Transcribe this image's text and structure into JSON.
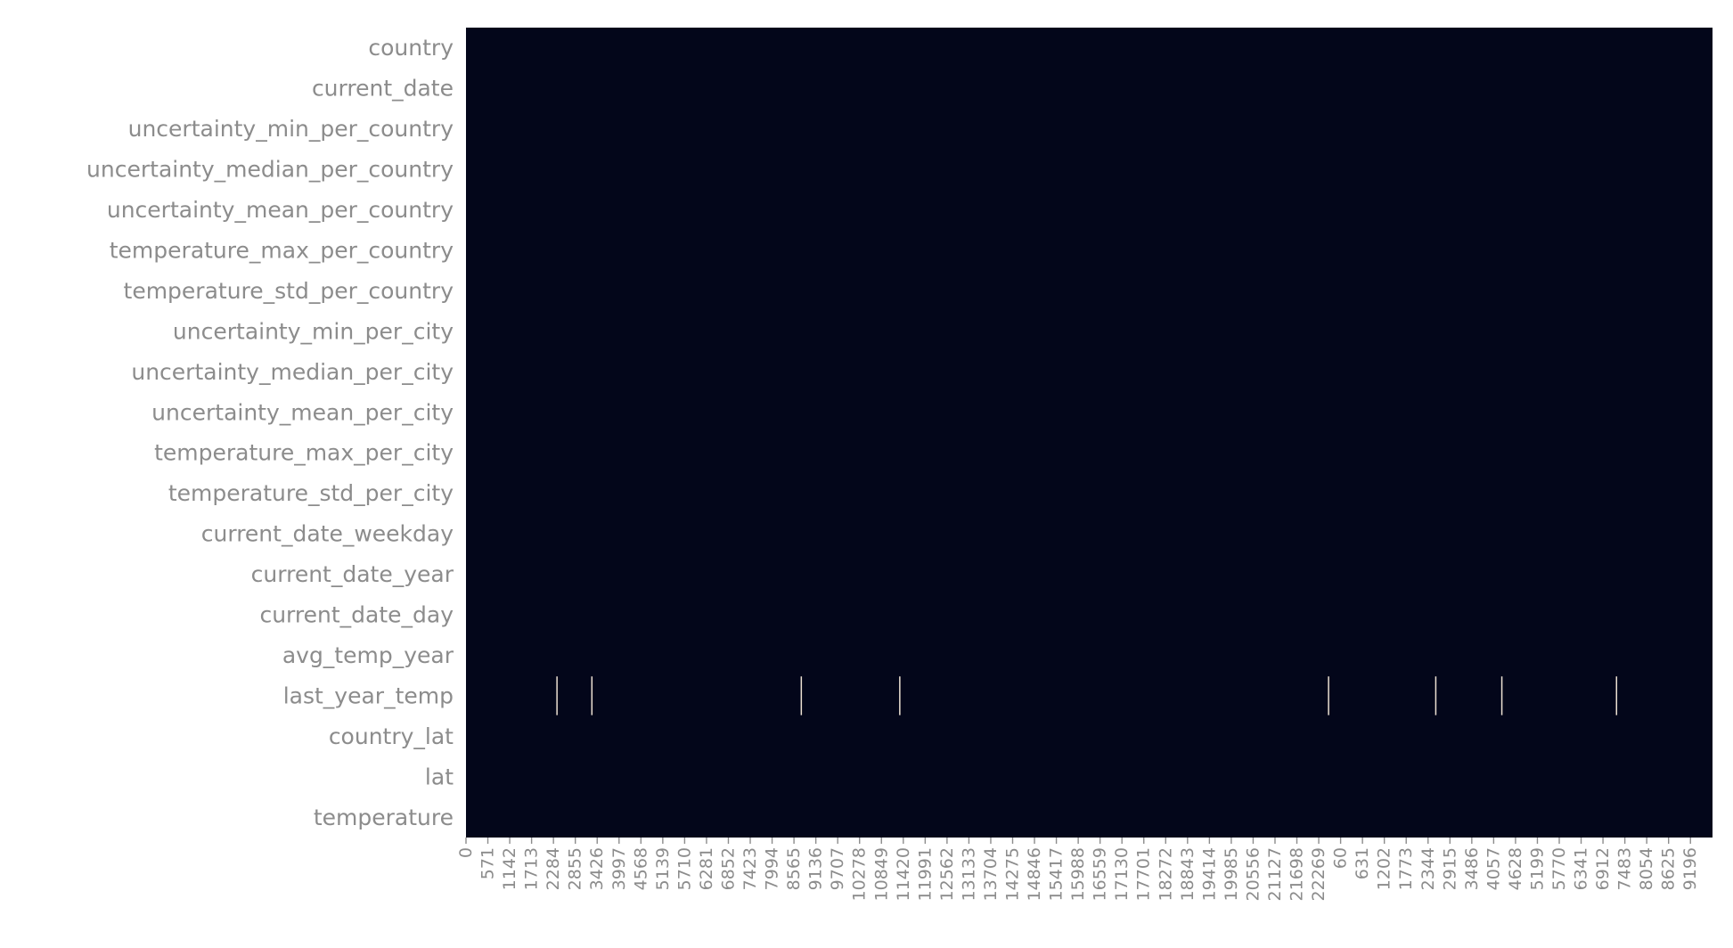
{
  "chart_data": {
    "type": "heatmap",
    "title": "",
    "xlabel": "",
    "ylabel": "",
    "colors": {
      "present": "#03061a",
      "missing": "#ece0d2",
      "tick": "#8c8c8c"
    },
    "colorbar": false,
    "rows": [
      "country",
      "current_date",
      "uncertainty_min_per_country",
      "uncertainty_median_per_country",
      "uncertainty_mean_per_country",
      "temperature_max_per_country",
      "temperature_std_per_country",
      "uncertainty_min_per_city",
      "uncertainty_median_per_city",
      "uncertainty_mean_per_city",
      "temperature_max_per_city",
      "temperature_std_per_city",
      "current_date_weekday",
      "current_date_year",
      "current_date_day",
      "avg_temp_year",
      "last_year_temp",
      "country_lat",
      "lat",
      "temperature"
    ],
    "x_tick_labels": [
      "0",
      "571",
      "1142",
      "1713",
      "2284",
      "2855",
      "3426",
      "3997",
      "4568",
      "5139",
      "5710",
      "6281",
      "6852",
      "7423",
      "7994",
      "8565",
      "9136",
      "9707",
      "10278",
      "10849",
      "11420",
      "11991",
      "12562",
      "13133",
      "13704",
      "14275",
      "14846",
      "15417",
      "15988",
      "16559",
      "17130",
      "17701",
      "18272",
      "18843",
      "19414",
      "19985",
      "20556",
      "21127",
      "21698",
      "22269",
      "60",
      "631",
      "1202",
      "1773",
      "2344",
      "2915",
      "3486",
      "4057",
      "4628",
      "5199",
      "5770",
      "6341",
      "6912",
      "7483",
      "8054",
      "8625",
      "9196"
    ],
    "missing": [
      {
        "row": "last_year_temp",
        "x_fractions": [
          0.073,
          0.101,
          0.269,
          0.348,
          0.692,
          0.778,
          0.831,
          0.923
        ]
      }
    ]
  }
}
